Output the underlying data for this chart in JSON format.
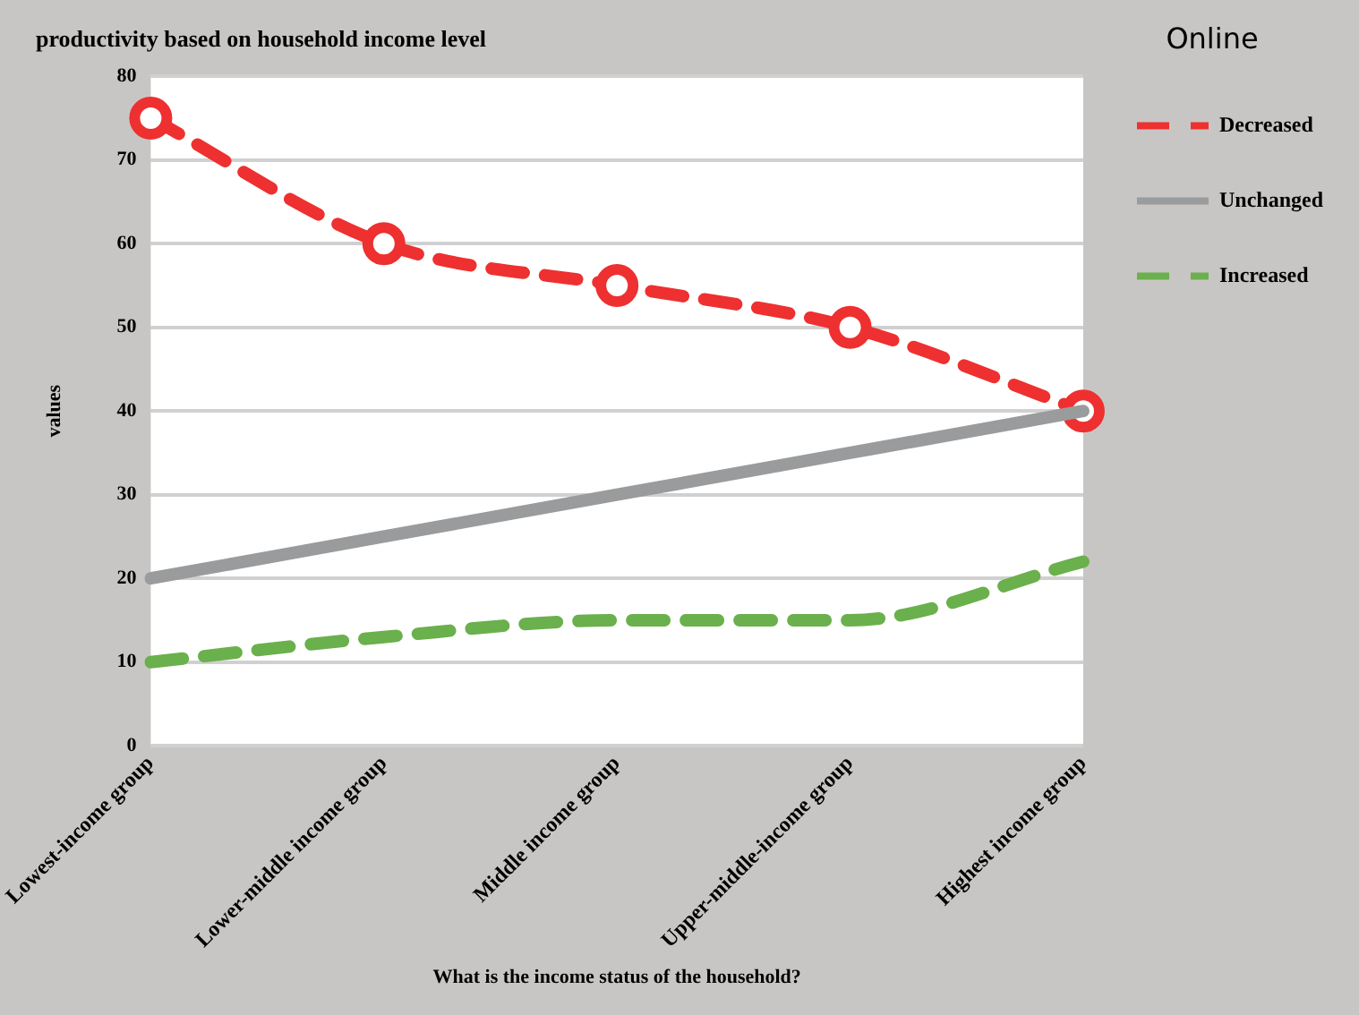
{
  "chart_data": {
    "type": "line",
    "title": "productivity based on household income level",
    "xlabel": "What is the income status of the household?",
    "ylabel": "values",
    "legend_title": "Online",
    "categories": [
      "Lowest-income group",
      "Lower-middle income group",
      "Middle income group",
      "Upper-middle-income group",
      "Highest income group"
    ],
    "series": [
      {
        "name": "Decreased",
        "color": "#ee3030",
        "values": [
          75,
          60,
          55,
          50,
          40
        ],
        "marker": "circle",
        "line_style": "dashed"
      },
      {
        "name": "Unchanged",
        "color": "#999b9c",
        "values": [
          20,
          25,
          30,
          35,
          40
        ],
        "marker": "none",
        "line_style": "solid"
      },
      {
        "name": "Increased",
        "color": "#6ab04c",
        "values": [
          10,
          13,
          15,
          15,
          22
        ],
        "marker": "none",
        "line_style": "dashed"
      }
    ],
    "ylim": [
      0,
      80
    ],
    "yticks": [
      0,
      10,
      20,
      30,
      40,
      50,
      60,
      70,
      80
    ],
    "grid": "y",
    "legend": "right"
  }
}
